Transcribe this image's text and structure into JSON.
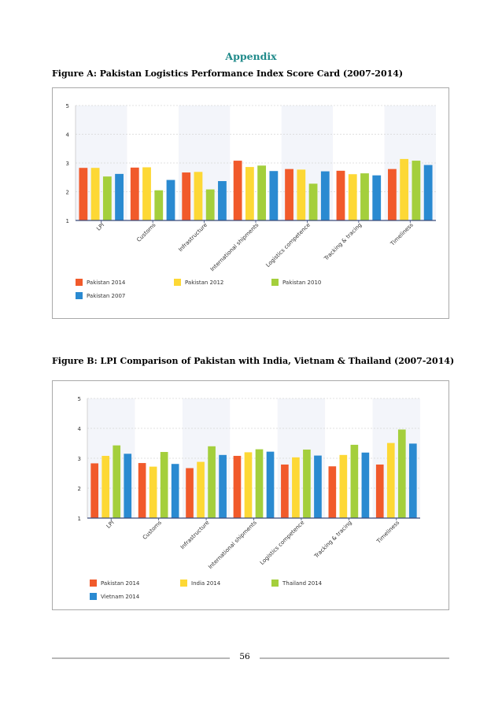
{
  "page": {
    "heading": "Appendix",
    "figure_a_caption": "Figure A: Pakistan Logistics Performance Index Score Card (2007-2014)",
    "figure_b_caption": "Figure B: LPI Comparison of Pakistan with India, Vietnam & Thailand (2007-2014)",
    "page_number": "56"
  },
  "chart_data": [
    {
      "type": "bar",
      "title": "",
      "categories": [
        "LPI",
        "Customs",
        "Infrastructure",
        "International shipments",
        "Logistics competence",
        "Tracking & tracing",
        "Timeliness"
      ],
      "ylim": [
        1,
        5
      ],
      "yticks": [
        "1",
        "2",
        "3",
        "4",
        "5"
      ],
      "grid": true,
      "legend_position": "bottom",
      "series": [
        {
          "name": "Pakistan 2014",
          "color": "#f15a2b",
          "values": [
            2.83,
            2.84,
            2.67,
            3.08,
            2.79,
            2.73,
            2.79
          ]
        },
        {
          "name": "Pakistan 2012",
          "color": "#fdd835",
          "values": [
            2.83,
            2.85,
            2.69,
            2.86,
            2.77,
            2.61,
            3.14
          ]
        },
        {
          "name": "Pakistan 2010",
          "color": "#a4cf3c",
          "values": [
            2.53,
            2.05,
            2.08,
            2.91,
            2.28,
            2.64,
            3.08
          ]
        },
        {
          "name": "Pakistan 2007",
          "color": "#2a8ad1",
          "values": [
            2.62,
            2.41,
            2.37,
            2.72,
            2.71,
            2.57,
            2.93
          ]
        }
      ]
    },
    {
      "type": "bar",
      "title": "",
      "categories": [
        "LPI",
        "Customs",
        "Infrastructure",
        "International shipments",
        "Logistics competence",
        "Tracking & tracing",
        "Timeliness"
      ],
      "ylim": [
        1,
        5
      ],
      "yticks": [
        "1",
        "2",
        "3",
        "4",
        "5"
      ],
      "grid": true,
      "legend_position": "bottom",
      "series": [
        {
          "name": "Pakistan 2014",
          "color": "#f15a2b",
          "values": [
            2.83,
            2.84,
            2.67,
            3.08,
            2.79,
            2.73,
            2.79
          ]
        },
        {
          "name": "India 2014",
          "color": "#fdd835",
          "values": [
            3.08,
            2.72,
            2.88,
            3.2,
            3.03,
            3.11,
            3.51
          ]
        },
        {
          "name": "Thailand 2014",
          "color": "#a4cf3c",
          "values": [
            3.43,
            3.21,
            3.4,
            3.3,
            3.29,
            3.45,
            3.96
          ]
        },
        {
          "name": "Vietnam 2014",
          "color": "#2a8ad1",
          "values": [
            3.15,
            2.81,
            3.11,
            3.22,
            3.09,
            3.19,
            3.49
          ]
        }
      ]
    }
  ]
}
